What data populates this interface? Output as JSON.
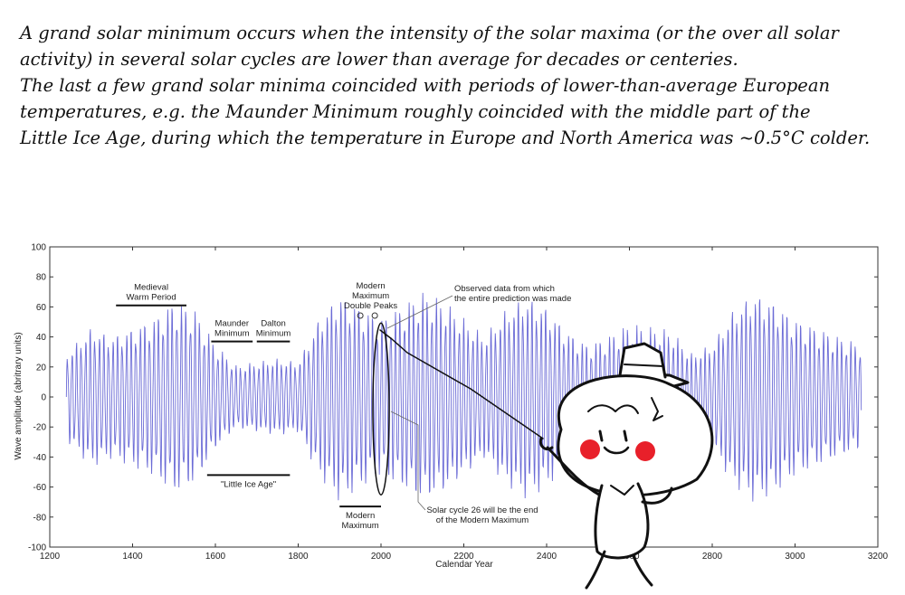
{
  "note": {
    "lines": [
      "A grand solar minimum occurs when the intensity of the solar maxima (or the over all solar",
      "activity) in several solar cycles are lower than average for decades or centeries.",
      "The last a few grand solar minima coincided with periods of lower-than-average European",
      "temperatures, e.g. the Maunder Minimum roughly coincided with the middle part of the",
      "Little Ice Age, during which the temperature in Europe and North America was ~0.5°C colder."
    ]
  },
  "chart_data": {
    "type": "line",
    "xlabel": "Calendar Year",
    "ylabel": "Wave amplitude (abritrary units)",
    "xlim": [
      1200,
      3200
    ],
    "ylim": [
      -100,
      100
    ],
    "xticks": [
      1200,
      1400,
      1600,
      1800,
      2000,
      2200,
      2400,
      2600,
      2800,
      3000,
      3200
    ],
    "yticks": [
      100,
      80,
      60,
      40,
      20,
      0,
      -20,
      -40,
      -60,
      -80,
      -100
    ],
    "line_color": "#6b6bd6",
    "series": [
      {
        "x_start": 1240,
        "x_end": 3160,
        "cycle_years": 11,
        "envelope_x": [
          1240,
          1300,
          1350,
          1400,
          1450,
          1500,
          1550,
          1600,
          1650,
          1700,
          1750,
          1800,
          1850,
          1900,
          1950,
          2000,
          2050,
          2100,
          2150,
          2200,
          2250,
          2300,
          2350,
          2400,
          2450,
          2500,
          2550,
          2600,
          2650,
          2700,
          2750,
          2800,
          2850,
          2900,
          2950,
          3000,
          3050,
          3100,
          3160
        ],
        "envelope_amp": [
          25,
          40,
          35,
          40,
          45,
          55,
          50,
          30,
          18,
          20,
          22,
          20,
          45,
          60,
          52,
          45,
          52,
          60,
          55,
          45,
          35,
          50,
          58,
          52,
          38,
          30,
          35,
          42,
          40,
          38,
          25,
          30,
          50,
          60,
          55,
          45,
          40,
          35,
          30
        ]
      }
    ],
    "annotations": [
      {
        "id": "medieval",
        "lines": [
          "Medieval",
          "Warm Period"
        ],
        "span": [
          1360,
          1530
        ],
        "bar_y": 61
      },
      {
        "id": "maunder",
        "lines": [
          "Maunder",
          "Minimum"
        ],
        "span": [
          1590,
          1690
        ],
        "bar_y": 37
      },
      {
        "id": "dalton",
        "lines": [
          "Dalton",
          "Minimum"
        ],
        "span": [
          1700,
          1780
        ],
        "bar_y": 37
      },
      {
        "id": "little-ice-age",
        "lines": [
          "\"Little Ice Age\""
        ],
        "span": [
          1580,
          1780
        ],
        "bar_y": -52
      },
      {
        "id": "modern-peaks",
        "lines": [
          "Modern",
          "Maximum",
          "Double Peaks"
        ],
        "x": 1975
      },
      {
        "id": "modern-max",
        "lines": [
          "Modern",
          "Maximum"
        ],
        "span": [
          1900,
          2000
        ],
        "bar_y": -73
      },
      {
        "id": "observed",
        "lines": [
          "Observed data from which",
          "the entire prediction was made"
        ]
      },
      {
        "id": "cycle26",
        "lines": [
          "Solar cycle 26 will be the end",
          "of the Modern Maximum"
        ]
      }
    ]
  }
}
